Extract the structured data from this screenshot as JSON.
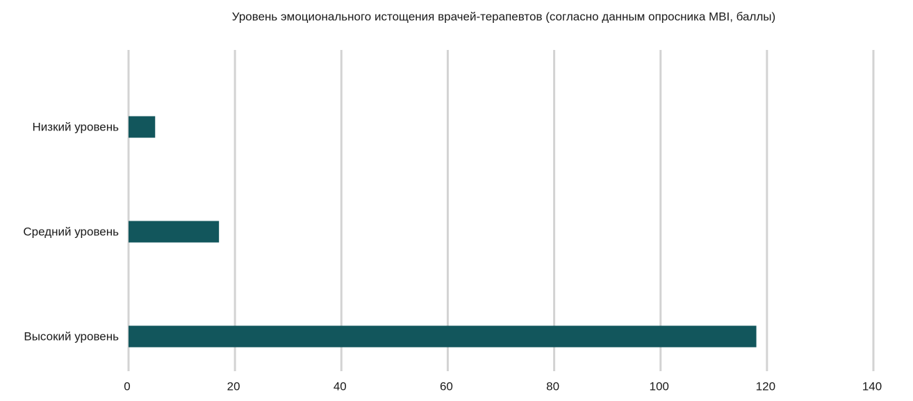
{
  "chart_data": {
    "type": "hbar",
    "title": "Уровень эмоционального истощения врачей-терапевтов (согласно данным опросника MBI, баллы)",
    "categories": [
      "Низкий уровень",
      "Средний уровень",
      "Высокий уровень"
    ],
    "values": [
      5,
      17,
      118
    ],
    "color": "#12565c",
    "xlim": [
      0,
      140
    ],
    "xticks": [
      0,
      20,
      40,
      60,
      80,
      100,
      120,
      140
    ],
    "grid": true
  }
}
